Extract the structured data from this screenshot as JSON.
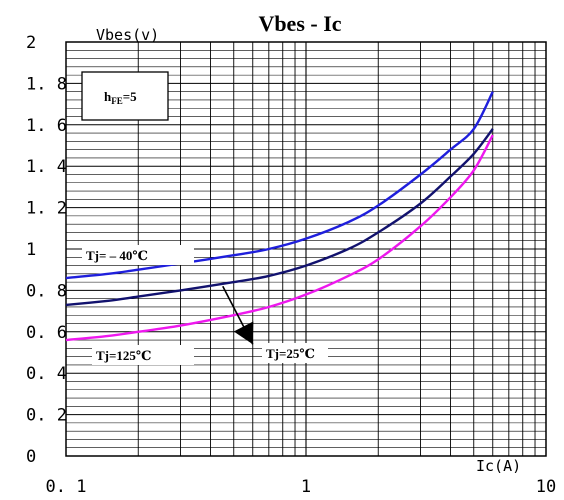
{
  "chart_data": {
    "type": "line",
    "title": "Vbes - Ic",
    "ylabel": "Vbes(v)",
    "xlabel": "Ic(A)",
    "x_scale": "log",
    "xlim": [
      0.1,
      10
    ],
    "ylim": [
      0,
      2
    ],
    "x_ticks": [
      "0. 1",
      "1",
      "10"
    ],
    "y_ticks": [
      "0",
      "0. 2",
      "0. 4",
      "0. 6",
      "0. 8",
      "1",
      "1. 2",
      "1. 4",
      "1. 6",
      "1. 8",
      "2"
    ],
    "grid": true,
    "annotation": {
      "base": "h",
      "sub": "FE",
      "rest": "=5"
    },
    "series": [
      {
        "name": "Tj= – 40℃",
        "color": "#1f1fdc",
        "x": [
          0.1,
          0.15,
          0.2,
          0.3,
          0.5,
          0.7,
          1,
          1.5,
          2,
          3,
          4,
          5,
          6
        ],
        "y": [
          0.86,
          0.88,
          0.9,
          0.93,
          0.97,
          1.0,
          1.05,
          1.13,
          1.21,
          1.36,
          1.48,
          1.58,
          1.76
        ]
      },
      {
        "name": "Tj=25℃",
        "color": "#12126e",
        "x": [
          0.1,
          0.15,
          0.2,
          0.3,
          0.5,
          0.7,
          1,
          1.5,
          2,
          3,
          4,
          5,
          6
        ],
        "y": [
          0.73,
          0.75,
          0.77,
          0.8,
          0.84,
          0.87,
          0.92,
          1.0,
          1.08,
          1.22,
          1.35,
          1.46,
          1.58
        ]
      },
      {
        "name": "Tj=125℃",
        "color": "#ee18ee",
        "x": [
          0.1,
          0.15,
          0.2,
          0.3,
          0.5,
          0.7,
          1,
          1.5,
          2,
          3,
          4,
          5,
          6
        ],
        "y": [
          0.56,
          0.58,
          0.6,
          0.63,
          0.68,
          0.72,
          0.78,
          0.87,
          0.95,
          1.11,
          1.25,
          1.38,
          1.55
        ]
      }
    ]
  }
}
